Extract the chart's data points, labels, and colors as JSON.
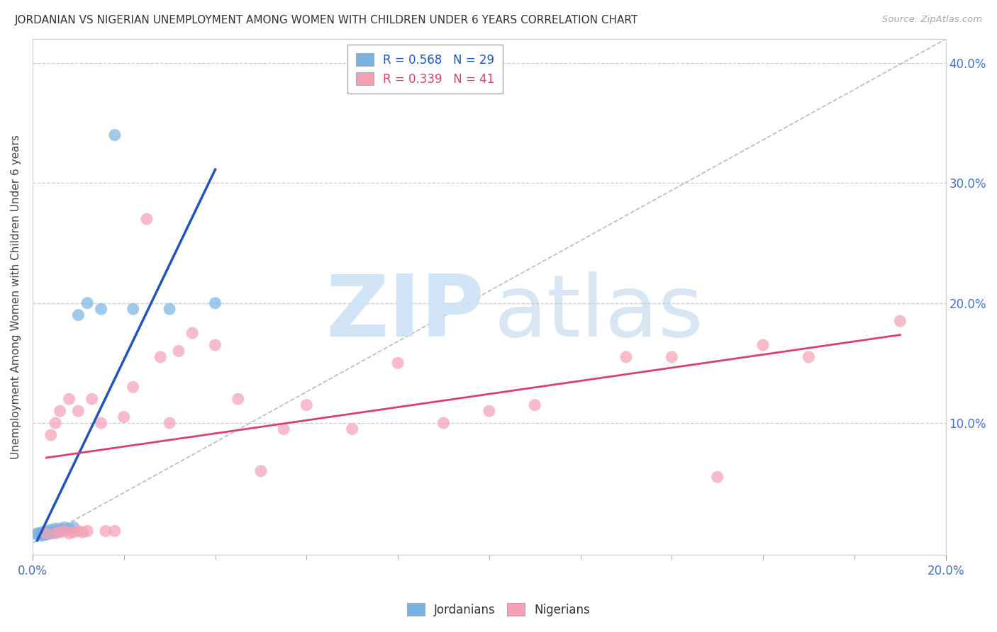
{
  "title": "JORDANIAN VS NIGERIAN UNEMPLOYMENT AMONG WOMEN WITH CHILDREN UNDER 6 YEARS CORRELATION CHART",
  "source": "Source: ZipAtlas.com",
  "ylabel": "Unemployment Among Women with Children Under 6 years",
  "xlim": [
    0.0,
    0.2
  ],
  "ylim": [
    -0.01,
    0.42
  ],
  "jordan_R": 0.568,
  "jordan_N": 29,
  "nigeria_R": 0.339,
  "nigeria_N": 41,
  "jordan_color": "#7ab3e0",
  "nigeria_color": "#f4a0b5",
  "jordan_line_color": "#2255bb",
  "nigeria_line_color": "#d94070",
  "ref_line_color": "#bbbbbb",
  "ytick_vals": [
    0.1,
    0.2,
    0.3,
    0.4
  ],
  "jordan_x": [
    0.001,
    0.001,
    0.002,
    0.002,
    0.002,
    0.002,
    0.003,
    0.003,
    0.003,
    0.003,
    0.004,
    0.004,
    0.004,
    0.005,
    0.005,
    0.005,
    0.006,
    0.006,
    0.007,
    0.007,
    0.008,
    0.009,
    0.01,
    0.012,
    0.015,
    0.018,
    0.022,
    0.03,
    0.04
  ],
  "jordan_y": [
    0.007,
    0.008,
    0.006,
    0.008,
    0.007,
    0.009,
    0.008,
    0.009,
    0.007,
    0.01,
    0.008,
    0.009,
    0.011,
    0.009,
    0.01,
    0.012,
    0.01,
    0.012,
    0.011,
    0.013,
    0.012,
    0.013,
    0.19,
    0.2,
    0.195,
    0.34,
    0.195,
    0.195,
    0.2
  ],
  "nigeria_x": [
    0.003,
    0.004,
    0.005,
    0.005,
    0.006,
    0.006,
    0.007,
    0.008,
    0.008,
    0.009,
    0.01,
    0.01,
    0.011,
    0.012,
    0.013,
    0.015,
    0.016,
    0.018,
    0.02,
    0.022,
    0.025,
    0.028,
    0.03,
    0.032,
    0.035,
    0.04,
    0.045,
    0.05,
    0.055,
    0.06,
    0.07,
    0.08,
    0.09,
    0.1,
    0.11,
    0.13,
    0.14,
    0.15,
    0.16,
    0.17,
    0.19
  ],
  "nigeria_y": [
    0.008,
    0.09,
    0.008,
    0.1,
    0.009,
    0.11,
    0.01,
    0.008,
    0.12,
    0.009,
    0.01,
    0.11,
    0.009,
    0.01,
    0.12,
    0.1,
    0.01,
    0.01,
    0.105,
    0.13,
    0.27,
    0.155,
    0.1,
    0.16,
    0.175,
    0.165,
    0.12,
    0.06,
    0.095,
    0.115,
    0.095,
    0.15,
    0.1,
    0.11,
    0.115,
    0.155,
    0.155,
    0.055,
    0.165,
    0.155,
    0.185
  ]
}
